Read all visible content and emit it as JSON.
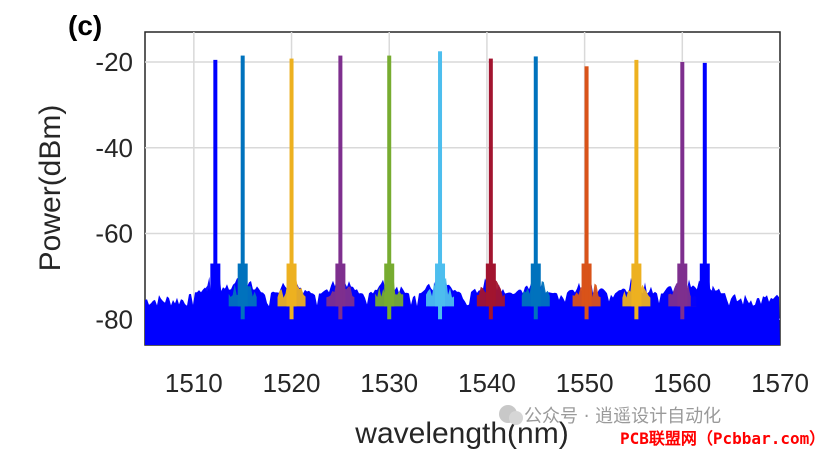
{
  "panel_label": "(c)",
  "chart_data": {
    "type": "line",
    "title": "",
    "xlabel": "wavelength(nm)",
    "ylabel": "Power(dBm)",
    "xlim": [
      1505,
      1570
    ],
    "ylim": [
      -86,
      -13
    ],
    "x_ticks": [
      1510,
      1520,
      1530,
      1540,
      1550,
      1560,
      1570
    ],
    "y_ticks": [
      -20,
      -40,
      -60,
      -80
    ],
    "x_tick_labels": [
      "1510",
      "1520",
      "1530",
      "1540",
      "1550",
      "1560",
      "1570"
    ],
    "y_tick_labels": [
      "-20",
      "-40",
      "-60",
      "-80"
    ],
    "grid": "vertical",
    "noise_floor": -80,
    "peaks": [
      {
        "wavelength": 1512.2,
        "power": -19.5,
        "color": "#0000ff"
      },
      {
        "wavelength": 1515.0,
        "power": -18.5,
        "color": "#0072bd"
      },
      {
        "wavelength": 1520.0,
        "power": -19.2,
        "color": "#edb120"
      },
      {
        "wavelength": 1525.0,
        "power": -18.5,
        "color": "#7e2f8e"
      },
      {
        "wavelength": 1530.0,
        "power": -18.5,
        "color": "#77ac30"
      },
      {
        "wavelength": 1535.2,
        "power": -17.5,
        "color": "#4dbeee"
      },
      {
        "wavelength": 1540.4,
        "power": -19.2,
        "color": "#a2142f"
      },
      {
        "wavelength": 1545.0,
        "power": -18.7,
        "color": "#0072bd"
      },
      {
        "wavelength": 1550.2,
        "power": -21.0,
        "color": "#d95319"
      },
      {
        "wavelength": 1555.3,
        "power": -19.5,
        "color": "#edb120"
      },
      {
        "wavelength": 1560.0,
        "power": -20.0,
        "color": "#7e2f8e"
      },
      {
        "wavelength": 1562.3,
        "power": -20.2,
        "color": "#0000ff"
      }
    ]
  },
  "watermark": {
    "wechat_text": "公众号 · 逍遥设计自动化",
    "brand_text": "PCB联盟网（Pcbbar.com）",
    "brand_color": "#ff0000"
  }
}
